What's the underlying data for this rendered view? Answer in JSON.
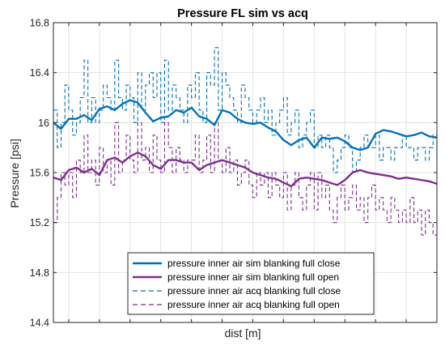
{
  "chart_data": {
    "type": "line",
    "title": "Pressure FL sim vs acq",
    "xlabel": "dist [m]",
    "ylabel": "Pressure [psi]",
    "ylim": [
      14.4,
      16.8
    ],
    "yticks": [
      14.4,
      14.8,
      15.2,
      15.6,
      16,
      16.4,
      16.8
    ],
    "ytick_labels": [
      "14.4",
      "14.8",
      "15.2",
      "15.6",
      "16",
      "16.4",
      "16.8"
    ],
    "xlim": [
      0,
      100
    ],
    "xticks": [
      4,
      12,
      20,
      28,
      36,
      44,
      52,
      60,
      68,
      76,
      84,
      92,
      100
    ],
    "xtick_labels_shown": false,
    "grid": true,
    "legend_location": "bottom-center",
    "series": [
      {
        "name": "pressure inner air sim blanking full close",
        "style": "solid",
        "color": "#0072BD",
        "x": [
          0,
          2,
          4,
          6,
          8,
          10,
          12,
          14,
          16,
          18,
          20,
          22,
          24,
          26,
          28,
          30,
          32,
          34,
          36,
          38,
          40,
          42,
          44,
          46,
          48,
          50,
          52,
          54,
          56,
          58,
          60,
          62,
          64,
          66,
          68,
          70,
          72,
          74,
          76,
          78,
          80,
          82,
          84,
          86,
          88,
          90,
          92,
          94,
          96,
          98,
          100
        ],
        "y": [
          16.0,
          15.95,
          16.03,
          16.03,
          16.06,
          16.02,
          16.11,
          16.13,
          16.1,
          16.15,
          16.18,
          16.16,
          16.08,
          16.01,
          16.04,
          16.05,
          16.1,
          16.08,
          16.12,
          16.05,
          16.03,
          15.98,
          16.1,
          16.08,
          16.03,
          16.0,
          15.99,
          16.0,
          15.96,
          15.93,
          15.86,
          15.82,
          15.86,
          15.88,
          15.8,
          15.88,
          15.87,
          15.88,
          15.85,
          15.8,
          15.78,
          15.8,
          15.91,
          15.94,
          15.93,
          15.91,
          15.89,
          15.9,
          15.92,
          15.89,
          15.88
        ]
      },
      {
        "name": "pressure inner air sim blanking full open",
        "style": "solid",
        "color": "#7E2F8E",
        "x": [
          0,
          2,
          4,
          6,
          8,
          10,
          12,
          14,
          16,
          18,
          20,
          22,
          24,
          26,
          28,
          30,
          32,
          34,
          36,
          38,
          40,
          42,
          44,
          46,
          48,
          50,
          52,
          54,
          56,
          58,
          60,
          62,
          64,
          66,
          68,
          70,
          72,
          74,
          76,
          78,
          80,
          82,
          84,
          86,
          88,
          90,
          92,
          94,
          96,
          98,
          100
        ],
        "y": [
          15.56,
          15.54,
          15.62,
          15.64,
          15.6,
          15.63,
          15.58,
          15.7,
          15.72,
          15.68,
          15.73,
          15.76,
          15.73,
          15.66,
          15.63,
          15.7,
          15.7,
          15.68,
          15.68,
          15.62,
          15.66,
          15.68,
          15.7,
          15.68,
          15.66,
          15.64,
          15.6,
          15.58,
          15.56,
          15.55,
          15.52,
          15.49,
          15.55,
          15.56,
          15.55,
          15.54,
          15.52,
          15.5,
          15.54,
          15.6,
          15.62,
          15.6,
          15.59,
          15.58,
          15.57,
          15.55,
          15.56,
          15.55,
          15.54,
          15.53,
          15.51
        ]
      },
      {
        "name": "pressure inner air acq blanking full close",
        "style": "dashed",
        "color": "#0072BD",
        "x": [
          0,
          1,
          2,
          3,
          4,
          5,
          6,
          7,
          8,
          9,
          10,
          11,
          12,
          13,
          14,
          15,
          16,
          17,
          18,
          19,
          20,
          21,
          22,
          23,
          24,
          25,
          26,
          27,
          28,
          29,
          30,
          31,
          32,
          33,
          34,
          35,
          36,
          37,
          38,
          39,
          40,
          41,
          42,
          43,
          44,
          45,
          46,
          47,
          48,
          49,
          50,
          51,
          52,
          53,
          54,
          55,
          56,
          57,
          58,
          59,
          60,
          61,
          62,
          63,
          64,
          65,
          66,
          67,
          68,
          69,
          70,
          71,
          72,
          73,
          74,
          75,
          76,
          77,
          78,
          79,
          80,
          81,
          82,
          83,
          84,
          85,
          86,
          87,
          88,
          89,
          90,
          91,
          92,
          93,
          94,
          95,
          96,
          97,
          98,
          99,
          100
        ],
        "y": [
          16.1,
          15.8,
          16.0,
          16.3,
          16.1,
          15.9,
          16.0,
          16.2,
          16.5,
          16.0,
          16.2,
          16.0,
          16.1,
          16.3,
          16.2,
          16.1,
          16.5,
          16.2,
          16.1,
          16.3,
          16.2,
          16.0,
          16.4,
          16.1,
          16.3,
          16.4,
          16.2,
          16.4,
          16.0,
          16.5,
          16.1,
          16.3,
          16.2,
          16.1,
          16.0,
          16.3,
          16.2,
          16.4,
          16.1,
          16.0,
          16.4,
          16.3,
          16.6,
          16.1,
          16.4,
          16.3,
          16.2,
          16.1,
          16.0,
          16.3,
          16.2,
          16.1,
          16.0,
          16.1,
          16.2,
          16.0,
          16.1,
          15.9,
          16.0,
          16.1,
          16.2,
          15.9,
          16.0,
          16.1,
          15.8,
          15.9,
          16.0,
          16.1,
          15.8,
          15.9,
          15.8,
          15.9,
          15.8,
          15.6,
          15.7,
          15.8,
          15.9,
          15.8,
          15.6,
          15.7,
          15.8,
          15.9,
          15.8,
          15.8,
          15.9,
          15.7,
          15.8,
          15.8,
          15.7,
          15.8,
          15.8,
          15.9,
          15.8,
          15.8,
          15.7,
          15.8,
          15.8,
          15.7,
          15.8,
          15.9,
          15.7
        ]
      },
      {
        "name": "pressure inner air acq blanking full open",
        "style": "dashed",
        "color": "#7E2F8E",
        "x": [
          0,
          1,
          2,
          3,
          4,
          5,
          6,
          7,
          8,
          9,
          10,
          11,
          12,
          13,
          14,
          15,
          16,
          17,
          18,
          19,
          20,
          21,
          22,
          23,
          24,
          25,
          26,
          27,
          28,
          29,
          30,
          31,
          32,
          33,
          34,
          35,
          36,
          37,
          38,
          39,
          40,
          41,
          42,
          43,
          44,
          45,
          46,
          47,
          48,
          49,
          50,
          51,
          52,
          53,
          54,
          55,
          56,
          57,
          58,
          59,
          60,
          61,
          62,
          63,
          64,
          65,
          66,
          67,
          68,
          69,
          70,
          71,
          72,
          73,
          74,
          75,
          76,
          77,
          78,
          79,
          80,
          81,
          82,
          83,
          84,
          85,
          86,
          87,
          88,
          89,
          90,
          91,
          92,
          93,
          94,
          95,
          96,
          97,
          98,
          99,
          100
        ],
        "y": [
          15.2,
          15.4,
          15.6,
          15.5,
          15.6,
          15.4,
          15.7,
          15.6,
          15.9,
          15.6,
          15.7,
          15.5,
          15.8,
          15.6,
          15.7,
          15.5,
          16.0,
          15.6,
          15.7,
          15.9,
          15.7,
          15.6,
          16.0,
          15.7,
          15.8,
          15.6,
          15.9,
          15.7,
          15.6,
          16.0,
          15.8,
          15.6,
          15.8,
          15.7,
          15.6,
          15.7,
          15.7,
          15.9,
          15.6,
          15.7,
          15.9,
          15.6,
          16.0,
          15.7,
          15.6,
          15.8,
          15.6,
          15.7,
          15.5,
          15.6,
          15.7,
          15.5,
          15.4,
          15.6,
          15.5,
          15.6,
          15.4,
          15.6,
          15.5,
          15.4,
          15.6,
          15.3,
          15.5,
          15.6,
          15.4,
          15.3,
          15.5,
          15.6,
          15.3,
          15.6,
          15.4,
          15.5,
          15.3,
          15.2,
          15.4,
          15.5,
          15.3,
          15.4,
          15.5,
          15.3,
          15.4,
          15.2,
          15.4,
          15.5,
          15.3,
          15.4,
          15.3,
          15.2,
          15.4,
          15.3,
          15.2,
          15.3,
          15.2,
          15.4,
          15.2,
          15.3,
          15.1,
          15.3,
          15.2,
          15.1,
          15.1
        ]
      }
    ]
  }
}
